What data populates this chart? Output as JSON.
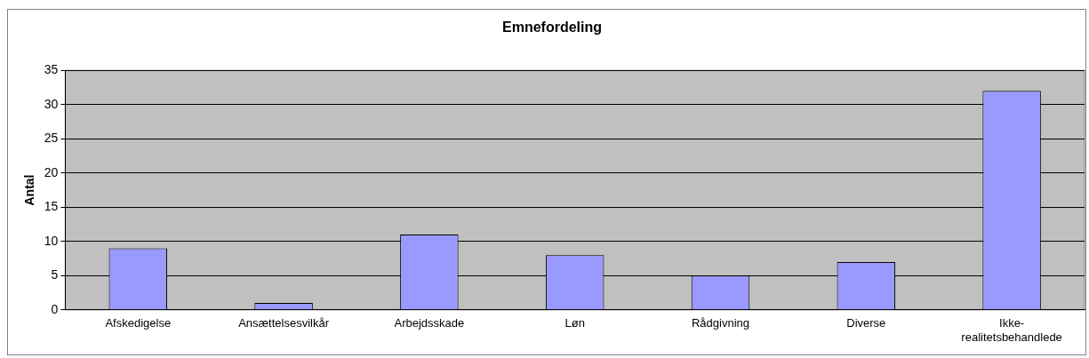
{
  "chart_data": {
    "type": "bar",
    "title": "Emnefordeling",
    "ylabel": "Antal",
    "categories": [
      "Afskedigelse",
      "Ansættelsesvilkår",
      "Arbejdsskade",
      "Løn",
      "Rådgivning",
      "Diverse",
      "Ikke-realitetsbehandlede"
    ],
    "values": [
      9,
      1,
      11,
      8,
      5,
      7,
      32
    ],
    "color": "#9999ff",
    "ylim": [
      0,
      35
    ],
    "yticks": [
      0,
      5,
      10,
      15,
      20,
      25,
      30,
      35
    ],
    "grid": "y"
  }
}
